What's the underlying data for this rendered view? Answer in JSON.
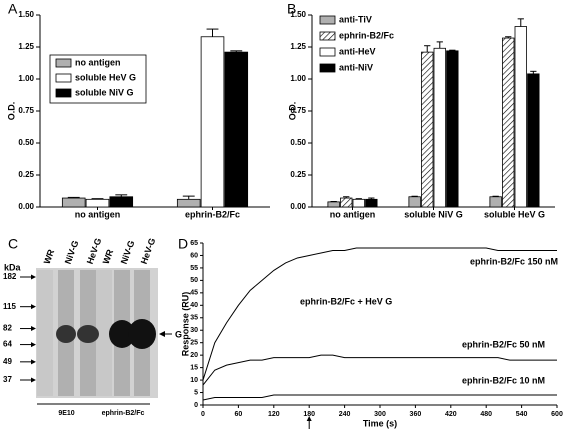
{
  "chart_data": [
    {
      "type": "bar",
      "panel": "A",
      "ylabel": "O.D.",
      "categories": [
        "no antigen",
        "ephrin-B2/Fc"
      ],
      "series": [
        {
          "name": "no antigen",
          "color": "#b0b0b0",
          "values": [
            0.07,
            0.06
          ],
          "errors": [
            0.005,
            0.025
          ]
        },
        {
          "name": "soluble HeV G",
          "color": "#ffffff",
          "values": [
            0.06,
            1.33
          ],
          "errors": [
            0.005,
            0.06
          ]
        },
        {
          "name": "soluble NiV G",
          "color": "#000000",
          "values": [
            0.08,
            1.21
          ],
          "errors": [
            0.015,
            0.01
          ]
        }
      ],
      "ylim": [
        0,
        1.5
      ],
      "yticks": [
        {
          "value": 0,
          "label": "0.00"
        },
        {
          "value": 0.25,
          "label": "0.25"
        },
        {
          "value": 0.5,
          "label": "0.50"
        },
        {
          "value": 0.75,
          "label": "0.75"
        },
        {
          "value": 1,
          "label": "1.00"
        },
        {
          "value": 1.25,
          "label": "1.25"
        },
        {
          "value": 1.5,
          "label": "1.50"
        }
      ],
      "grid": false,
      "legend": "upper-left"
    },
    {
      "type": "bar",
      "panel": "B",
      "ylabel": "O.D.",
      "categories": [
        "no antigen",
        "soluble NiV G",
        "soluble HeV G"
      ],
      "series": [
        {
          "name": "anti-TiV",
          "color": "#b0b0b0",
          "values": [
            0.04,
            0.08,
            0.08
          ],
          "errors": [
            0.003,
            0.004,
            0.004
          ]
        },
        {
          "name": "ephrin-B2/Fc",
          "color": "#ffffff",
          "pattern": "hatch",
          "values": [
            0.07,
            1.21,
            1.32
          ],
          "errors": [
            0.01,
            0.05,
            0.01
          ]
        },
        {
          "name": "anti-HeV",
          "color": "#ffffff",
          "values": [
            0.06,
            1.24,
            1.41
          ],
          "errors": [
            0.005,
            0.05,
            0.06
          ]
        },
        {
          "name": "anti-NiV",
          "color": "#000000",
          "values": [
            0.06,
            1.22,
            1.04
          ],
          "errors": [
            0.01,
            0.005,
            0.02
          ]
        }
      ],
      "ylim": [
        0,
        1.5
      ],
      "yticks": [
        {
          "value": 0,
          "label": "0.00"
        },
        {
          "value": 0.25,
          "label": "0.25"
        },
        {
          "value": 0.5,
          "label": "0.50"
        },
        {
          "value": 0.75,
          "label": "0.75"
        },
        {
          "value": 1,
          "label": "1.00"
        },
        {
          "value": 1.25,
          "label": "1.25"
        },
        {
          "value": 1.5,
          "label": "1.50"
        }
      ],
      "grid": false,
      "legend": "upper-left"
    },
    {
      "type": "blot",
      "panel": "C",
      "unit": "kDa",
      "markers": [
        182,
        115,
        82,
        64,
        49,
        37
      ],
      "log_scale": true,
      "lanes": [
        "WR",
        "NiV-G",
        "HeV-G",
        "WR",
        "NiV-G",
        "HeV-G"
      ],
      "groups": [
        "9E10",
        "ephrin-B2/Fc"
      ],
      "band_label": "G"
    },
    {
      "type": "line",
      "panel": "D",
      "xlabel": "Time (s)",
      "ylabel": "Response (RU)",
      "annotation": "ephrin-B2/Fc + HeV G",
      "x": [
        0,
        20,
        40,
        60,
        80,
        100,
        120,
        140,
        160,
        180,
        200,
        220,
        240,
        260,
        280,
        300,
        320,
        340,
        360,
        380,
        400,
        420,
        440,
        460,
        480,
        500,
        520,
        540,
        560,
        580,
        600
      ],
      "series": [
        {
          "name": "ephrin-B2/Fc 150 nM",
          "color": "#000000",
          "values": [
            10,
            25,
            33,
            40,
            46,
            50,
            54,
            57,
            59,
            60,
            61,
            62,
            62,
            63,
            63,
            63,
            63,
            63,
            63,
            63,
            63,
            63,
            63,
            63,
            63,
            62,
            62,
            62,
            62,
            62,
            62
          ]
        },
        {
          "name": "ephrin-B2/Fc 50 nM",
          "color": "#000000",
          "values": [
            8,
            14,
            16,
            17,
            18,
            18,
            19,
            19,
            19,
            19,
            20,
            20,
            19,
            19,
            19,
            19,
            19,
            19,
            19,
            19,
            19,
            19,
            19,
            19,
            19,
            19,
            18,
            18,
            18,
            18,
            18
          ]
        },
        {
          "name": "ephrin-B2/Fc 10 nM",
          "color": "#000000",
          "values": [
            2,
            3,
            3,
            3,
            3,
            3,
            4,
            4,
            4,
            4,
            4,
            4,
            4,
            4,
            4,
            4,
            4,
            4,
            4,
            4,
            4,
            4,
            4,
            4,
            4,
            4,
            4,
            4,
            4,
            4,
            4
          ]
        }
      ],
      "xlim": [
        0,
        600
      ],
      "xticks": [
        0,
        60,
        120,
        180,
        240,
        300,
        360,
        420,
        480,
        540,
        600
      ],
      "ylim": [
        0,
        65
      ],
      "yticks": [
        0,
        5,
        10,
        15,
        20,
        25,
        30,
        35,
        40,
        45,
        50,
        55,
        60,
        65
      ],
      "grid": false
    }
  ]
}
